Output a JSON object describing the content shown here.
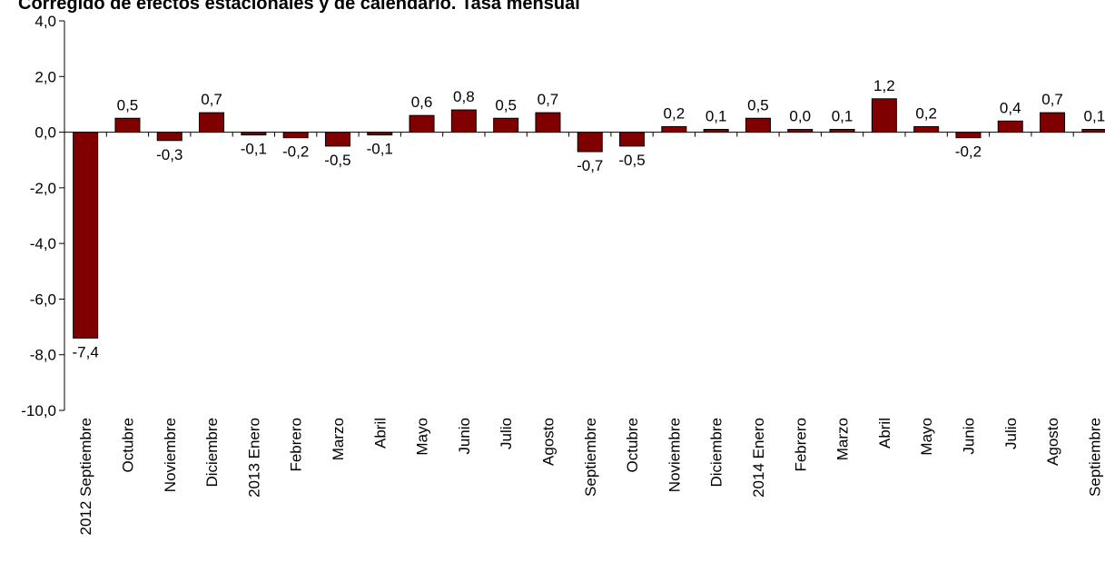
{
  "title": "Corregido de efectos estacionales y de calendario. Tasa mensual",
  "colors": {
    "bar": "#800000",
    "bar_stroke": "#000000",
    "axis": "#000000"
  },
  "chart_data": {
    "type": "bar",
    "title": "Corregido de efectos estacionales y de calendario. Tasa mensual",
    "xlabel": "",
    "ylabel": "",
    "ylim": [
      -10,
      4
    ],
    "yticks": [
      4,
      2,
      0,
      -2,
      -4,
      -6,
      -8,
      -10
    ],
    "ytick_labels": [
      "4,0",
      "2,0",
      "0,0",
      "-2,0",
      "-4,0",
      "-6,0",
      "-8,0",
      "-10,0"
    ],
    "grid": false,
    "legend": "none",
    "categories": [
      "2012 Septiembre",
      "Octubre",
      "Noviembre",
      "Diciembre",
      "2013 Enero",
      "Febrero",
      "Marzo",
      "Abril",
      "Mayo",
      "Junio",
      "Julio",
      "Agosto",
      "Septiembre",
      "Octubre",
      "Noviembre",
      "Diciembre",
      "2014 Enero",
      "Febrero",
      "Marzo",
      "Abril",
      "Mayo",
      "Junio",
      "Julio",
      "Agosto",
      "Septiembre"
    ],
    "values": [
      -7.4,
      0.5,
      -0.3,
      0.7,
      -0.1,
      -0.2,
      -0.5,
      -0.1,
      0.6,
      0.8,
      0.5,
      0.7,
      -0.7,
      -0.5,
      0.2,
      0.1,
      0.5,
      0.0,
      0.1,
      1.2,
      0.2,
      -0.2,
      0.4,
      0.7,
      0.1
    ],
    "value_labels": [
      "-7,4",
      "0,5",
      "-0,3",
      "0,7",
      "-0,1",
      "-0,2",
      "-0,5",
      "-0,1",
      "0,6",
      "0,8",
      "0,5",
      "0,7",
      "-0,7",
      "-0,5",
      "0,2",
      "0,1",
      "0,5",
      "0,0",
      "0,1",
      "1,2",
      "0,2",
      "-0,2",
      "0,4",
      "0,7",
      "0,1"
    ]
  }
}
